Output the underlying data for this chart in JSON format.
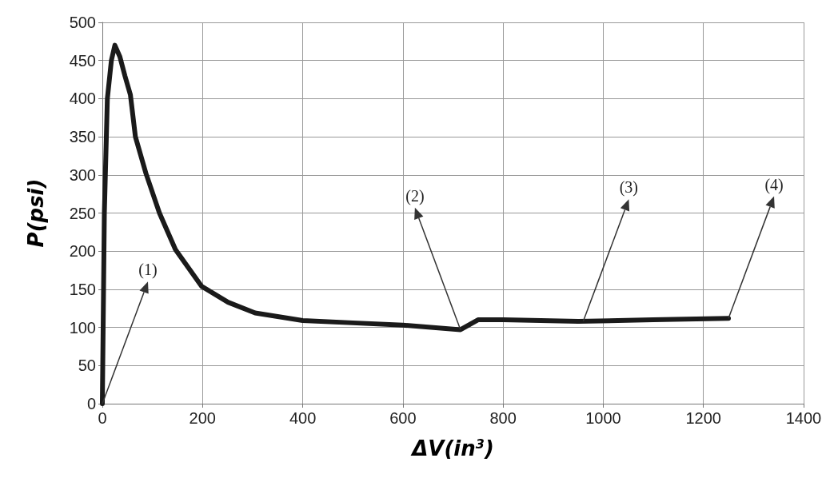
{
  "chart_data": {
    "type": "line",
    "xlabel": "ΔV(in$^{3}$)",
    "ylabel": "P(psi)",
    "x": [
      0,
      4,
      10,
      18,
      25,
      35,
      45,
      56,
      66,
      87,
      114,
      146,
      198,
      251,
      305,
      400,
      500,
      600,
      715,
      750,
      800,
      950,
      1100,
      1250
    ],
    "series": [
      {
        "color": "#1a1a1a",
        "values": [
          0,
          250,
          400,
          450,
          470,
          455,
          430,
          405,
          350,
          302,
          250,
          202,
          154,
          133,
          119,
          109,
          106,
          103,
          97,
          110,
          110,
          108,
          110,
          112
        ]
      }
    ],
    "xlim": [
      0,
      1400
    ],
    "xticks": [
      0,
      200,
      400,
      600,
      800,
      1000,
      1200,
      1400
    ],
    "ylim": [
      0,
      500
    ],
    "yticks": [
      0,
      50,
      100,
      150,
      200,
      250,
      300,
      350,
      400,
      450,
      500
    ],
    "grid": true,
    "marker": "none",
    "line_style": "solid",
    "annotations": [
      {
        "text": "(1)",
        "x": 0,
        "y": 0
      },
      {
        "text": "(2)",
        "x": 715,
        "y": 97
      },
      {
        "text": "(3)",
        "x": 960,
        "y": 108
      },
      {
        "text": "(4)",
        "x": 1250,
        "y": 112
      }
    ]
  }
}
